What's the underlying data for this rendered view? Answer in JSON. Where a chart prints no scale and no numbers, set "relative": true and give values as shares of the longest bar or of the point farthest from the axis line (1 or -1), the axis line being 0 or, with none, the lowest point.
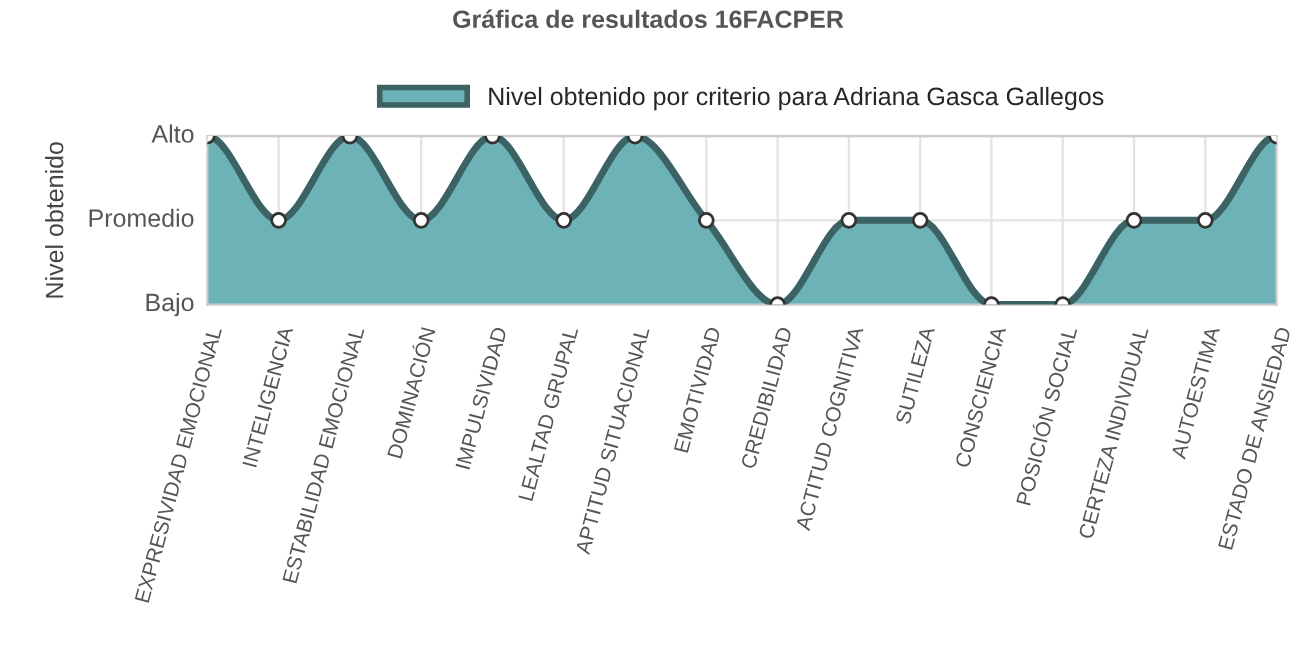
{
  "chart_data": {
    "type": "area",
    "title": "Gráfica de resultados 16FACPER",
    "ylabel": "Nivel obtenido",
    "categories": [
      "EXPRESIVIDAD EMOCIONAL",
      "INTELIGENCIA",
      "ESTABILIDAD EMOCIONAL",
      "DOMINACIÓN",
      "IMPULSIVIDAD",
      "LEALTAD GRUPAL",
      "APTITUD SITUACIONAL",
      "EMOTIVIDAD",
      "CREDIBILIDAD",
      "ACTITUD COGNITIVA",
      "SUTILEZA",
      "CONSCIENCIA",
      "POSICIÓN SOCIAL",
      "CERTEZA INDIVIDUAL",
      "AUTOESTIMA",
      "ESTADO DE ANSIEDAD"
    ],
    "series": [
      {
        "name": "Nivel obtenido por criterio para Adriana Gasca Gallegos",
        "color": "#6cb2b6",
        "values": [
          1,
          0.5,
          1,
          0.5,
          1,
          0.5,
          1,
          0.5,
          0,
          0.5,
          0.5,
          0,
          0,
          0.5,
          0.5,
          1
        ]
      }
    ],
    "relative": true,
    "annotations": [
      "Alto",
      "Promedio",
      "Bajo"
    ],
    "grid": true,
    "legend": "top",
    "marker": "circle",
    "line_style": "solid"
  }
}
